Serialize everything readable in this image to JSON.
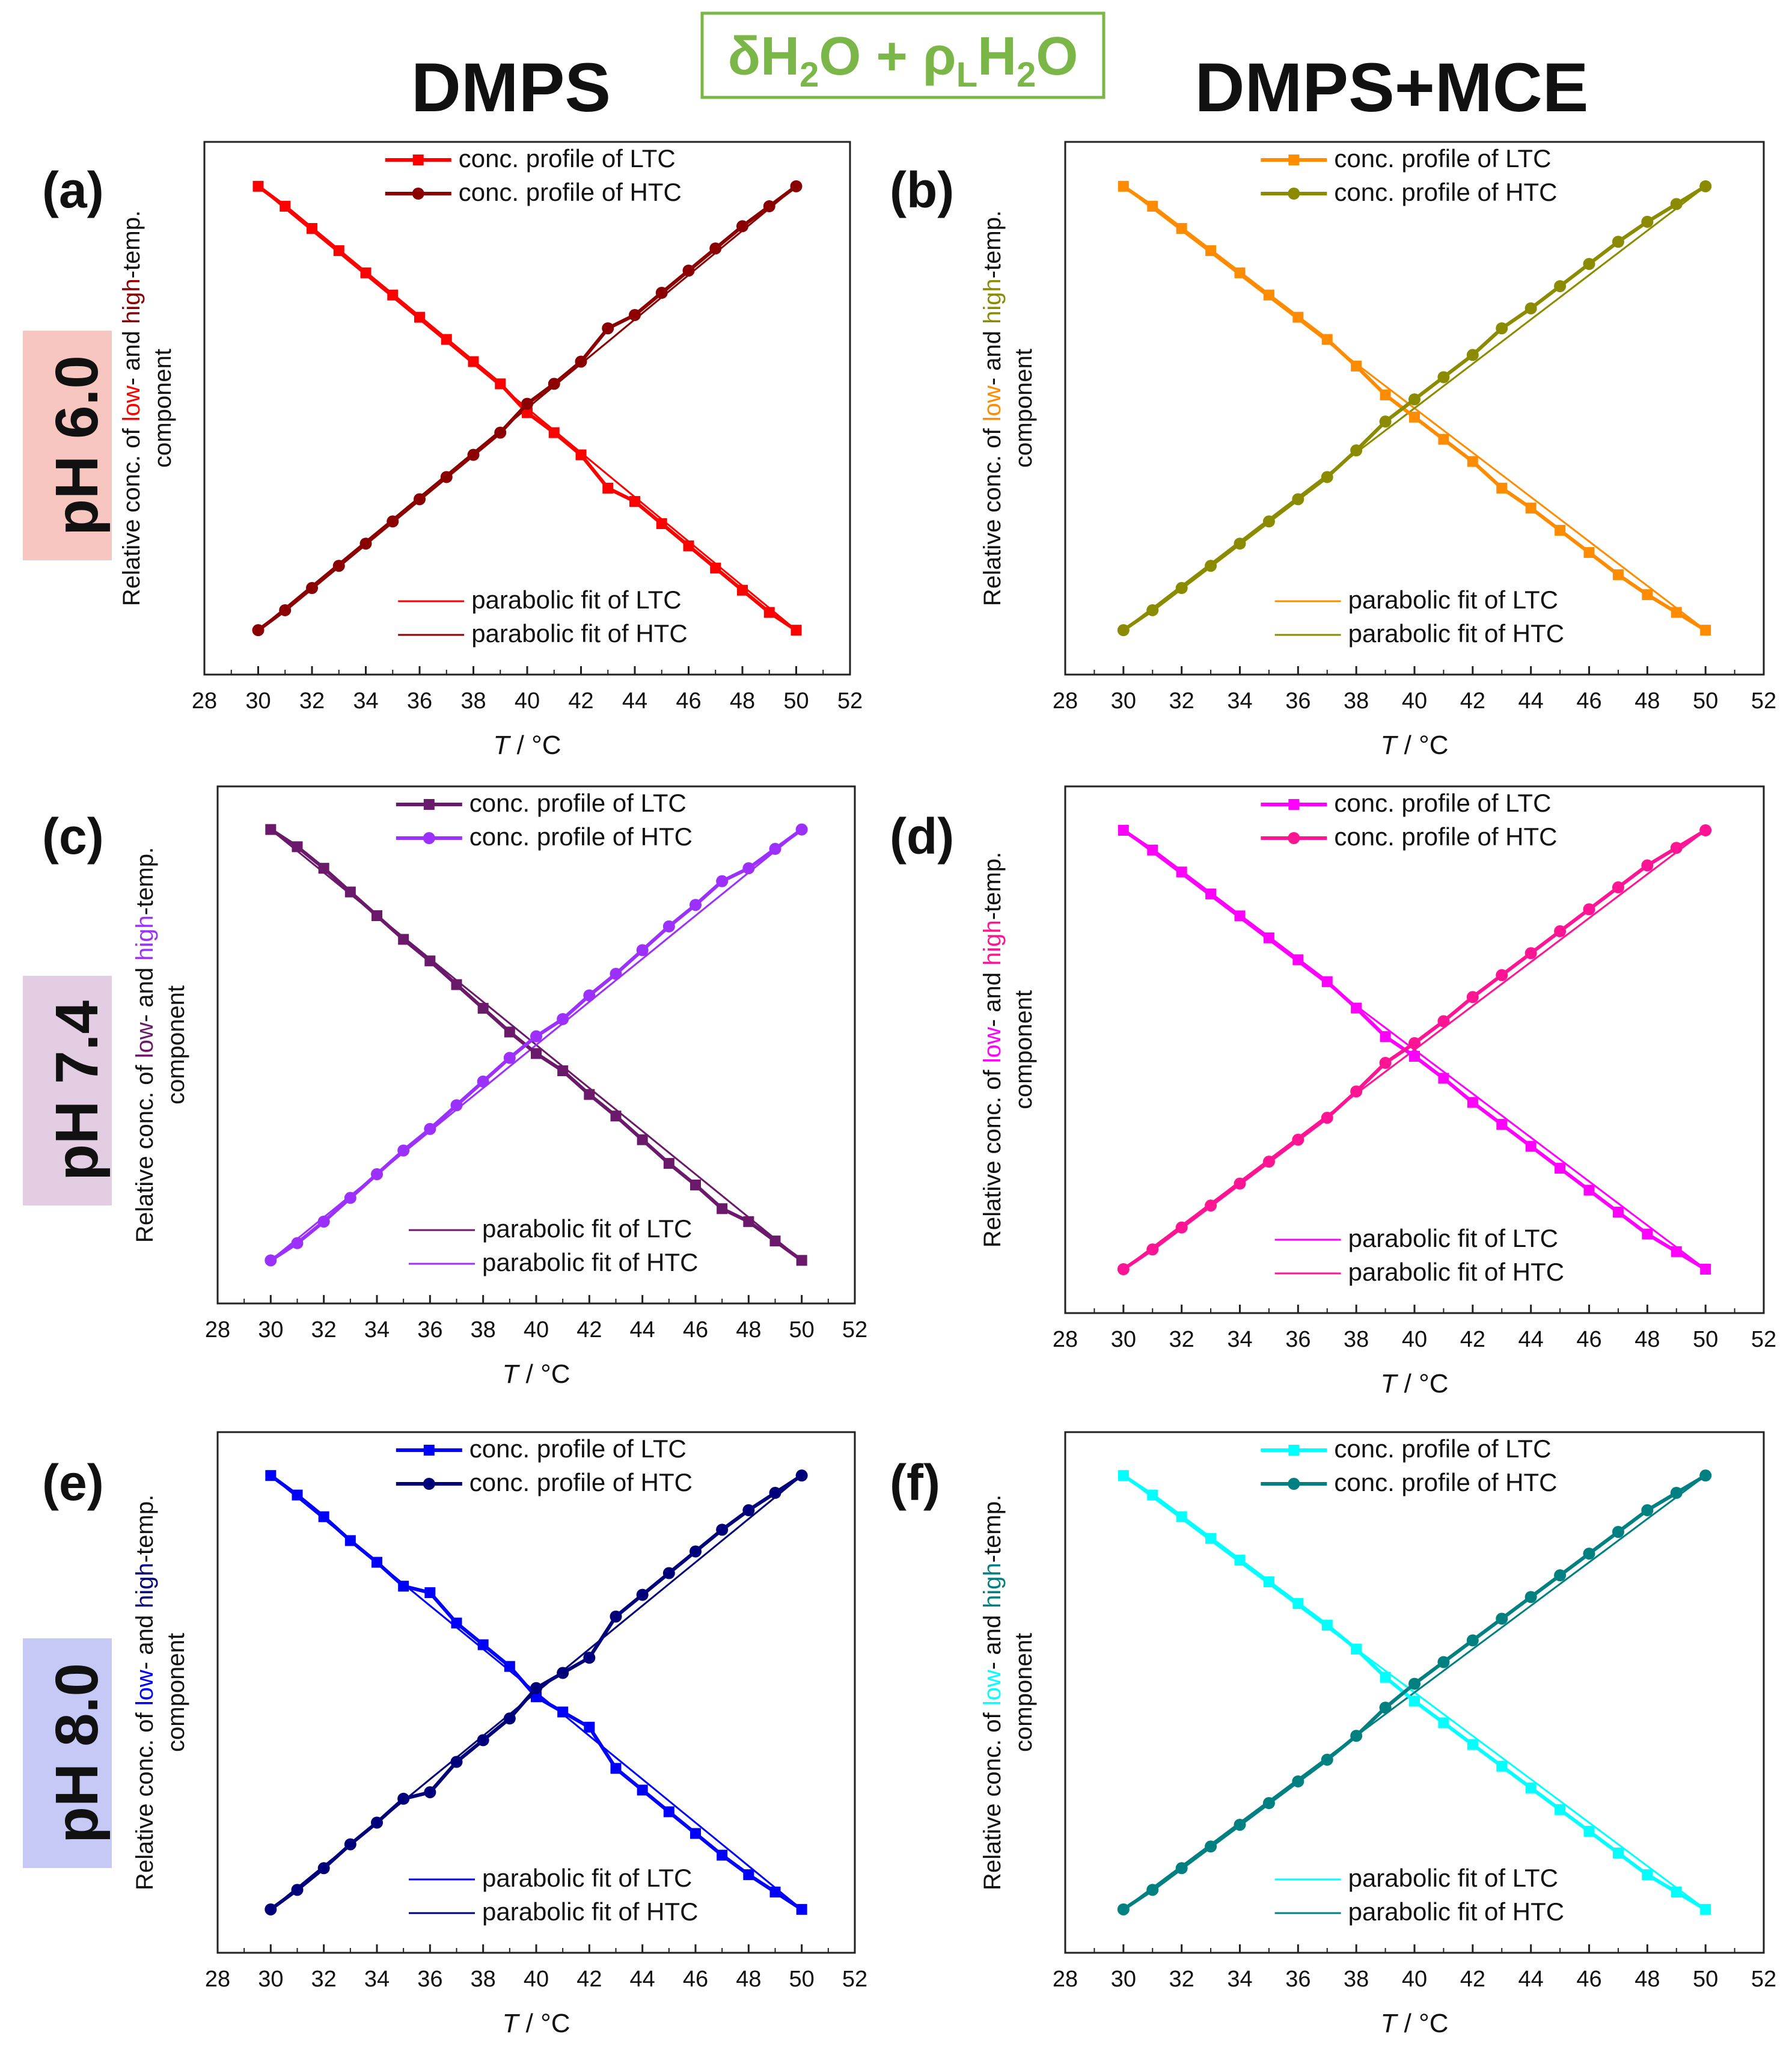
{
  "header": {
    "title": "δH2O + ρLH2O",
    "title_parts": [
      "δH",
      "2",
      "O + ρ",
      "L",
      "H",
      "2",
      "O"
    ],
    "title_color": "#7ab648",
    "col_left": "DMPS",
    "col_right": "DMPS+MCE"
  },
  "rows": [
    {
      "label": "pH 6.0",
      "color": "#f7c6c0"
    },
    {
      "label": "pH 7.4",
      "color": "#e2cde3"
    },
    {
      "label": "pH 8.0",
      "color": "#c6c8f5"
    }
  ],
  "axis_text": {
    "xlabel_italic": "T",
    "xlabel_rest": " / °C",
    "ylabel_line1_a": "Relative conc. of ",
    "ylabel_low": "low",
    "ylabel_line1_b": "- and ",
    "ylabel_high": "high",
    "ylabel_line1_c": "-temp.",
    "ylabel_line2": "component"
  },
  "chart_data": [
    {
      "panel": "(a)",
      "type": "line",
      "xlim": [
        28,
        52
      ],
      "ylim": [
        -0.1,
        1.1
      ],
      "xticks": [
        "28",
        "30",
        "32",
        "34",
        "36",
        "38",
        "40",
        "42",
        "44",
        "46",
        "48",
        "50",
        "52"
      ],
      "x": [
        30,
        31,
        32,
        33,
        34,
        35,
        36,
        37,
        38,
        39,
        40,
        41,
        42,
        43,
        44,
        45,
        46,
        47,
        48,
        49,
        50
      ],
      "ltc_color": "#ff0000",
      "htc_color": "#8b0000",
      "legend_top": [
        "conc. profile of LTC",
        "conc. profile of HTC"
      ],
      "legend_bottom": [
        "parabolic fit of LTC",
        "parabolic fit of HTC"
      ],
      "series": [
        {
          "name": "conc. profile of LTC",
          "marker": "square",
          "values": [
            1.0,
            0.955,
            0.905,
            0.855,
            0.805,
            0.755,
            0.705,
            0.655,
            0.605,
            0.555,
            0.49,
            0.445,
            0.395,
            0.32,
            0.29,
            0.24,
            0.19,
            0.14,
            0.09,
            0.04,
            0.0
          ]
        },
        {
          "name": "conc. profile of HTC",
          "marker": "circle",
          "values": [
            0.0,
            0.045,
            0.095,
            0.145,
            0.195,
            0.245,
            0.295,
            0.345,
            0.395,
            0.445,
            0.51,
            0.555,
            0.605,
            0.68,
            0.71,
            0.76,
            0.81,
            0.86,
            0.91,
            0.955,
            1.0
          ]
        },
        {
          "name": "parabolic fit of LTC",
          "fit": [
            1.0,
            0.025
          ]
        },
        {
          "name": "parabolic fit of HTC",
          "fit": [
            0.0,
            0.025
          ]
        }
      ]
    },
    {
      "panel": "(b)",
      "type": "line",
      "xlim": [
        28,
        52
      ],
      "ylim": [
        -0.1,
        1.1
      ],
      "xticks": [
        "28",
        "30",
        "32",
        "34",
        "36",
        "38",
        "40",
        "42",
        "44",
        "46",
        "48",
        "50",
        "52"
      ],
      "x": [
        30,
        31,
        32,
        33,
        34,
        35,
        36,
        37,
        38,
        39,
        40,
        41,
        42,
        43,
        44,
        45,
        46,
        47,
        48,
        49,
        50
      ],
      "ltc_color": "#ff8c00",
      "htc_color": "#8b8b00",
      "legend_top": [
        "conc. profile of LTC",
        "conc. profile of HTC"
      ],
      "legend_bottom": [
        "parabolic fit of LTC",
        "parabolic fit of HTC"
      ],
      "series": [
        {
          "name": "conc. profile of LTC",
          "marker": "square",
          "values": [
            1.0,
            0.955,
            0.905,
            0.855,
            0.805,
            0.755,
            0.705,
            0.655,
            0.595,
            0.53,
            0.48,
            0.43,
            0.38,
            0.32,
            0.275,
            0.225,
            0.175,
            0.125,
            0.08,
            0.04,
            0.0
          ]
        },
        {
          "name": "conc. profile of HTC",
          "marker": "circle",
          "values": [
            0.0,
            0.045,
            0.095,
            0.145,
            0.195,
            0.245,
            0.295,
            0.345,
            0.405,
            0.47,
            0.52,
            0.57,
            0.62,
            0.68,
            0.725,
            0.775,
            0.825,
            0.875,
            0.92,
            0.96,
            1.0
          ]
        },
        {
          "name": "parabolic fit of LTC",
          "fit": [
            1.0,
            0.025
          ]
        },
        {
          "name": "parabolic fit of HTC",
          "fit": [
            0.0,
            0.025
          ]
        }
      ]
    },
    {
      "panel": "(c)",
      "type": "line",
      "xlim": [
        28,
        52
      ],
      "ylim": [
        -0.1,
        1.1
      ],
      "xticks": [
        "28",
        "30",
        "32",
        "34",
        "36",
        "38",
        "40",
        "42",
        "44",
        "46",
        "48",
        "50",
        "52"
      ],
      "x": [
        30,
        31,
        32,
        33,
        34,
        35,
        36,
        37,
        38,
        39,
        40,
        41,
        42,
        43,
        44,
        45,
        46,
        47,
        48,
        49,
        50
      ],
      "ltc_color": "#6b1a6b",
      "htc_color": "#9b30ff",
      "legend_top": [
        "conc. profile of LTC",
        "conc. profile of HTC"
      ],
      "legend_bottom": [
        "parabolic fit of LTC",
        "parabolic fit of HTC"
      ],
      "series": [
        {
          "name": "conc. profile of LTC",
          "marker": "square",
          "values": [
            1.0,
            0.96,
            0.91,
            0.855,
            0.8,
            0.745,
            0.695,
            0.64,
            0.585,
            0.53,
            0.48,
            0.44,
            0.385,
            0.335,
            0.28,
            0.225,
            0.175,
            0.12,
            0.09,
            0.045,
            0.0
          ]
        },
        {
          "name": "conc. profile of HTC",
          "marker": "circle",
          "values": [
            0.0,
            0.04,
            0.09,
            0.145,
            0.2,
            0.255,
            0.305,
            0.36,
            0.415,
            0.47,
            0.52,
            0.56,
            0.615,
            0.665,
            0.72,
            0.775,
            0.825,
            0.88,
            0.91,
            0.955,
            1.0
          ]
        },
        {
          "name": "parabolic fit of LTC",
          "fit": [
            1.0,
            0.025
          ]
        },
        {
          "name": "parabolic fit of HTC",
          "fit": [
            0.0,
            0.025
          ]
        }
      ]
    },
    {
      "panel": "(d)",
      "type": "line",
      "xlim": [
        28,
        52
      ],
      "ylim": [
        -0.1,
        1.1
      ],
      "xticks": [
        "28",
        "30",
        "32",
        "34",
        "36",
        "38",
        "40",
        "42",
        "44",
        "46",
        "48",
        "50",
        "52"
      ],
      "x": [
        30,
        31,
        32,
        33,
        34,
        35,
        36,
        37,
        38,
        39,
        40,
        41,
        42,
        43,
        44,
        45,
        46,
        47,
        48,
        49,
        50
      ],
      "ltc_color": "#ff00ff",
      "htc_color": "#ff1493",
      "legend_top": [
        "conc. profile of LTC",
        "conc. profile of HTC"
      ],
      "legend_bottom": [
        "parabolic fit of LTC",
        "parabolic fit of HTC"
      ],
      "series": [
        {
          "name": "conc. profile of LTC",
          "marker": "square",
          "values": [
            1.0,
            0.955,
            0.905,
            0.855,
            0.805,
            0.755,
            0.705,
            0.655,
            0.595,
            0.53,
            0.485,
            0.435,
            0.38,
            0.33,
            0.28,
            0.23,
            0.18,
            0.13,
            0.08,
            0.04,
            0.0
          ]
        },
        {
          "name": "conc. profile of HTC",
          "marker": "circle",
          "values": [
            0.0,
            0.045,
            0.095,
            0.145,
            0.195,
            0.245,
            0.295,
            0.345,
            0.405,
            0.47,
            0.515,
            0.565,
            0.62,
            0.67,
            0.72,
            0.77,
            0.82,
            0.87,
            0.92,
            0.96,
            1.0
          ]
        },
        {
          "name": "parabolic fit of LTC",
          "fit": [
            1.0,
            0.025
          ]
        },
        {
          "name": "parabolic fit of HTC",
          "fit": [
            0.0,
            0.025
          ]
        }
      ]
    },
    {
      "panel": "(e)",
      "type": "line",
      "xlim": [
        28,
        52
      ],
      "ylim": [
        -0.1,
        1.1
      ],
      "xticks": [
        "28",
        "30",
        "32",
        "34",
        "36",
        "38",
        "40",
        "42",
        "44",
        "46",
        "48",
        "50",
        "52"
      ],
      "x": [
        30,
        31,
        32,
        33,
        34,
        35,
        36,
        37,
        38,
        39,
        40,
        41,
        42,
        43,
        44,
        45,
        46,
        47,
        48,
        49,
        50
      ],
      "ltc_color": "#0000ff",
      "htc_color": "#00007a",
      "legend_top": [
        "conc. profile of LTC",
        "conc. profile of HTC"
      ],
      "legend_bottom": [
        "parabolic fit of LTC",
        "parabolic fit of HTC"
      ],
      "series": [
        {
          "name": "conc. profile of LTC",
          "marker": "square",
          "values": [
            1.0,
            0.955,
            0.905,
            0.85,
            0.8,
            0.745,
            0.73,
            0.66,
            0.61,
            0.56,
            0.49,
            0.455,
            0.42,
            0.325,
            0.275,
            0.225,
            0.175,
            0.125,
            0.08,
            0.04,
            0.0
          ]
        },
        {
          "name": "conc. profile of HTC",
          "marker": "circle",
          "values": [
            0.0,
            0.045,
            0.095,
            0.15,
            0.2,
            0.255,
            0.27,
            0.34,
            0.39,
            0.44,
            0.51,
            0.545,
            0.58,
            0.675,
            0.725,
            0.775,
            0.825,
            0.875,
            0.92,
            0.96,
            1.0
          ]
        },
        {
          "name": "parabolic fit of LTC",
          "fit": [
            1.0,
            0.025
          ]
        },
        {
          "name": "parabolic fit of HTC",
          "fit": [
            0.0,
            0.025
          ]
        }
      ]
    },
    {
      "panel": "(f)",
      "type": "line",
      "xlim": [
        28,
        52
      ],
      "ylim": [
        -0.1,
        1.1
      ],
      "xticks": [
        "28",
        "30",
        "32",
        "34",
        "36",
        "38",
        "40",
        "42",
        "44",
        "46",
        "48",
        "50",
        "52"
      ],
      "x": [
        30,
        31,
        32,
        33,
        34,
        35,
        36,
        37,
        38,
        39,
        40,
        41,
        42,
        43,
        44,
        45,
        46,
        47,
        48,
        49,
        50
      ],
      "ltc_color": "#00ffff",
      "htc_color": "#008080",
      "legend_top": [
        "conc. profile of LTC",
        "conc. profile of HTC"
      ],
      "legend_bottom": [
        "parabolic fit of LTC",
        "parabolic fit of HTC"
      ],
      "series": [
        {
          "name": "conc. profile of LTC",
          "marker": "square",
          "values": [
            1.0,
            0.955,
            0.905,
            0.855,
            0.805,
            0.755,
            0.705,
            0.655,
            0.6,
            0.535,
            0.48,
            0.43,
            0.38,
            0.33,
            0.28,
            0.23,
            0.18,
            0.13,
            0.08,
            0.04,
            0.0
          ]
        },
        {
          "name": "conc. profile of HTC",
          "marker": "circle",
          "values": [
            0.0,
            0.045,
            0.095,
            0.145,
            0.195,
            0.245,
            0.295,
            0.345,
            0.4,
            0.465,
            0.52,
            0.57,
            0.62,
            0.67,
            0.72,
            0.77,
            0.82,
            0.87,
            0.92,
            0.96,
            1.0
          ]
        },
        {
          "name": "parabolic fit of LTC",
          "fit": [
            1.0,
            0.025
          ]
        },
        {
          "name": "parabolic fit of HTC",
          "fit": [
            0.0,
            0.025
          ]
        }
      ]
    }
  ]
}
